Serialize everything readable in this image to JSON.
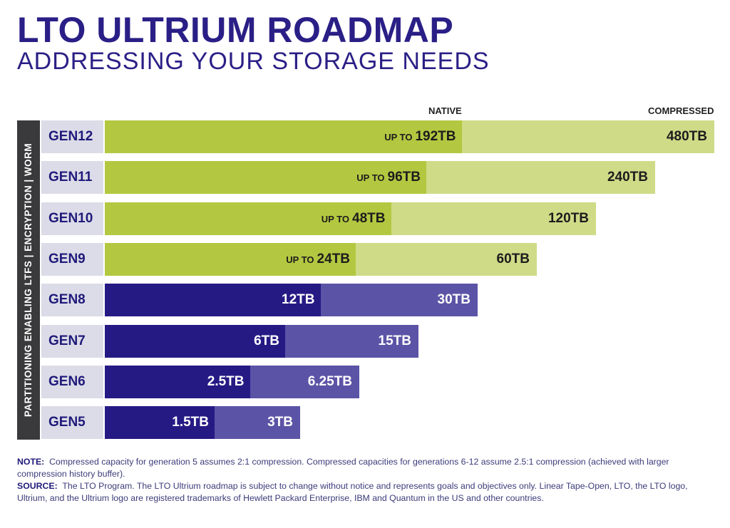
{
  "title": "LTO ULTRIUM ROADMAP",
  "subtitle": "ADDRESSING YOUR STORAGE NEEDS",
  "colors": {
    "title": "#2a1f86",
    "subtitle": "#2a1f86",
    "gen_label_text": "#1f1a7a",
    "gen_label_bg": "#dcdce8",
    "side_strip": "#3a3a3c",
    "native_green": "#b3c840",
    "compressed_green": "#cfdb87",
    "native_purple": "#251a84",
    "compressed_purple": "#5b54a6",
    "dark_text": "#1c1c1c",
    "light_text": "#ffffff"
  },
  "side_label": "PARTITIONING ENABLING LTFS  |  ENCRYPTION  |  WORM",
  "note": {
    "label": "NOTE:",
    "text": "Compressed capacity for generation 5 assumes 2:1 compression. Compressed capacities for generations 6-12 assume 2.5:1 compression (achieved with larger compression history buffer)."
  },
  "source": {
    "label": "SOURCE:",
    "text": "The LTO Program. The LTO Ultrium roadmap is subject to change without notice and represents goals and objectives only. Linear Tape-Open, LTO, the LTO logo, Ultrium, and the Ultrium logo are registered trademarks of Hewlett Packard Enterprise, IBM and Quantum in the US and other countries."
  },
  "chart_data": {
    "type": "bar",
    "orientation": "horizontal",
    "series_names": [
      "NATIVE",
      "COMPRESSED"
    ],
    "categories": [
      "GEN12",
      "GEN11",
      "GEN10",
      "GEN9",
      "GEN8",
      "GEN7",
      "GEN6",
      "GEN5"
    ],
    "native_tb": [
      192,
      96,
      48,
      24,
      12,
      6,
      2.5,
      1.5
    ],
    "compressed_tb": [
      480,
      240,
      120,
      60,
      30,
      15,
      6.25,
      3
    ],
    "native_labels": [
      "192TB",
      "96TB",
      "48TB",
      "24TB",
      "12TB",
      "6TB",
      "2.5TB",
      "1.5TB"
    ],
    "native_prefix": [
      "UP TO",
      "UP TO",
      "UP TO",
      "UP TO",
      "",
      "",
      "",
      ""
    ],
    "compressed_labels": [
      "480TB",
      "240TB",
      "120TB",
      "60TB",
      "30TB",
      "15TB",
      "6.25TB",
      "3TB"
    ],
    "future": [
      true,
      true,
      true,
      true,
      false,
      false,
      false,
      false
    ],
    "scale": "stepped"
  }
}
